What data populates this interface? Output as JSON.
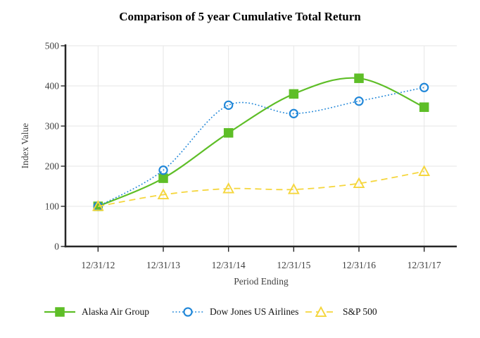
{
  "chart_data": {
    "type": "line",
    "title": "Comparison of 5 year Cumulative Total Return",
    "xlabel": "Period Ending",
    "ylabel": "Index Value",
    "categories": [
      "12/31/12",
      "12/31/13",
      "12/31/14",
      "12/31/15",
      "12/31/16",
      "12/31/17"
    ],
    "series": [
      {
        "name": "Alaska Air Group",
        "values": [
          100,
          170,
          283,
          380,
          419,
          347
        ],
        "color": "#5ebe27",
        "marker": "square",
        "line": "solid"
      },
      {
        "name": "Dow Jones US Airlines",
        "values": [
          100,
          190,
          352,
          331,
          362,
          396
        ],
        "color": "#1f86d8",
        "marker": "circle",
        "line": "dotted"
      },
      {
        "name": "S&P 500",
        "values": [
          100,
          129,
          144,
          142,
          157,
          187
        ],
        "color": "#f5d63d",
        "marker": "triangle",
        "line": "dashed"
      }
    ],
    "ylim": [
      0,
      500
    ],
    "yticks": [
      0,
      100,
      200,
      300,
      400,
      500
    ],
    "grid": true,
    "smooth": true,
    "legend_position": "bottom",
    "colors": {
      "grid": "#e6e6e6",
      "axis": "#262626",
      "tick_text": "#3f3f3f",
      "background": "#ffffff"
    }
  }
}
